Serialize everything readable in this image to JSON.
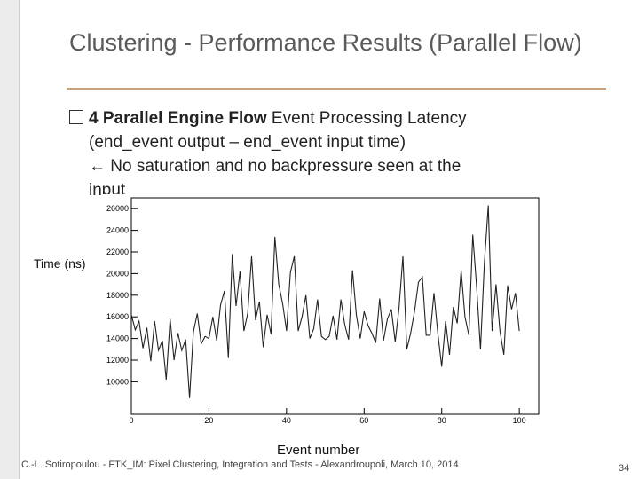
{
  "slide": {
    "title": "Clustering - Performance Results (Parallel Flow)",
    "bullet_bold": "4 Parallel Engine Flow",
    "bullet_rest": " Event Processing Latency",
    "line2": "(end_event output – end_event input time)",
    "line3_arrow": "←",
    "line3_text": " No saturation and no backpressure seen at the",
    "line4_text": "input"
  },
  "footer": {
    "text": "C.-L. Sotiropoulou - FTK_IM: Pixel Clustering, Integration and Tests - Alexandroupoli, March 10, 2014",
    "page_number": "34"
  },
  "colors": {
    "title": "#5a5a5a",
    "rule": "#c9a27a",
    "line": "#222222"
  },
  "chart_data": {
    "type": "line",
    "title": "",
    "xlabel": "Event number",
    "ylabel": "Time (ns)",
    "xlim": [
      0,
      105
    ],
    "ylim": [
      7000,
      27000
    ],
    "xticks": [
      0,
      20,
      40,
      60,
      80,
      100
    ],
    "yticks": [
      10000,
      12000,
      14000,
      16000,
      18000,
      20000,
      22000,
      24000,
      26000
    ],
    "grid": false,
    "series": [
      {
        "x": [
          0,
          1,
          2,
          3,
          4,
          5,
          6,
          7,
          8,
          9,
          10,
          11,
          12,
          13,
          14,
          15,
          16,
          17,
          18,
          19,
          20,
          21,
          22,
          23,
          24,
          25,
          26,
          27,
          28,
          29,
          30,
          31,
          32,
          33,
          34,
          35,
          36,
          37,
          38,
          39,
          40,
          41,
          42,
          43,
          44,
          45,
          46,
          47,
          48,
          49,
          50,
          51,
          52,
          53,
          54,
          55,
          56,
          57,
          58,
          59,
          60,
          61,
          62,
          63,
          64,
          65,
          66,
          67,
          68,
          69,
          70,
          71,
          72,
          73,
          74,
          75,
          76,
          77,
          78,
          79,
          80,
          81,
          82,
          83,
          84,
          85,
          86,
          87,
          88,
          89,
          90,
          91,
          92,
          93,
          94,
          95,
          96,
          97,
          98,
          99,
          100
        ],
        "y": [
          16200,
          14800,
          15600,
          13100,
          15000,
          11900,
          15600,
          12900,
          13800,
          10200,
          15800,
          12000,
          14500,
          12900,
          13900,
          8500,
          14600,
          16300,
          13500,
          14200,
          14000,
          16000,
          13800,
          17100,
          18400,
          12200,
          21800,
          17000,
          20200,
          14700,
          16300,
          21600,
          15700,
          17400,
          13200,
          16200,
          14400,
          23400,
          19000,
          17200,
          14700,
          20100,
          21600,
          14700,
          16000,
          18000,
          14000,
          14900,
          17600,
          14200,
          13900,
          14200,
          16100,
          13900,
          17600,
          15300,
          13900,
          20300,
          16200,
          14000,
          16500,
          15200,
          14500,
          13600,
          17700,
          13800,
          15800,
          16700,
          13700,
          16800,
          21600,
          13000,
          14500,
          16500,
          19200,
          19700,
          14300,
          14300,
          18200,
          14500,
          11400,
          15600,
          12500,
          16900,
          15400,
          20300,
          16000,
          14300,
          23600,
          18700,
          13000,
          21000,
          26300,
          14700,
          19000,
          14700,
          12500,
          18900,
          16700,
          18200,
          14700
        ]
      }
    ]
  }
}
